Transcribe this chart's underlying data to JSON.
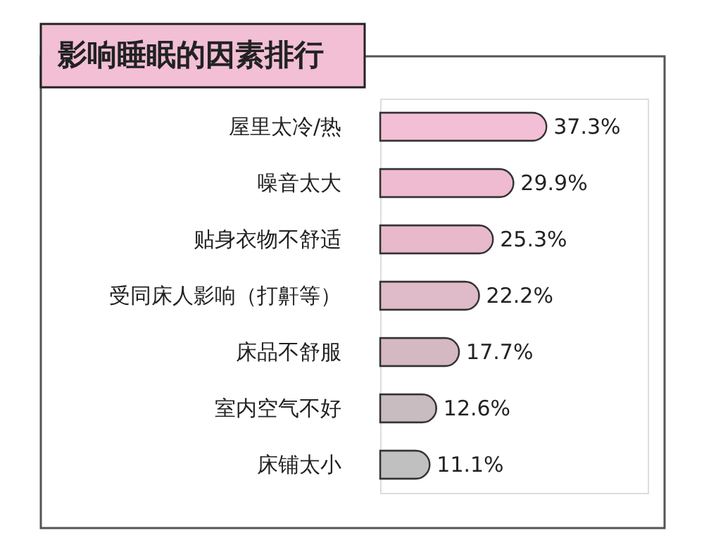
{
  "chart_data": {
    "type": "bar",
    "orientation": "horizontal",
    "title": "影响睡眠的因素排行",
    "categories": [
      "屋里太冷/热",
      "噪音太大",
      "贴身衣物不舒适",
      "受同床人影响（打鼾等）",
      "床品不舒服",
      "室内空气不好",
      "床铺太小"
    ],
    "values": [
      37.3,
      29.9,
      25.3,
      22.2,
      17.7,
      12.6,
      11.1
    ],
    "value_labels": [
      "37.3%",
      "29.9%",
      "25.3%",
      "22.2%",
      "17.7%",
      "12.6%",
      "11.1%"
    ],
    "colors": [
      "#f3bfd6",
      "#efbbd0",
      "#e8b9cb",
      "#dfbac8",
      "#d4b8c2",
      "#c9bcc0",
      "#c0c0c0"
    ],
    "xlim": [
      0,
      60
    ],
    "tick_labels": "y",
    "grid": false
  }
}
